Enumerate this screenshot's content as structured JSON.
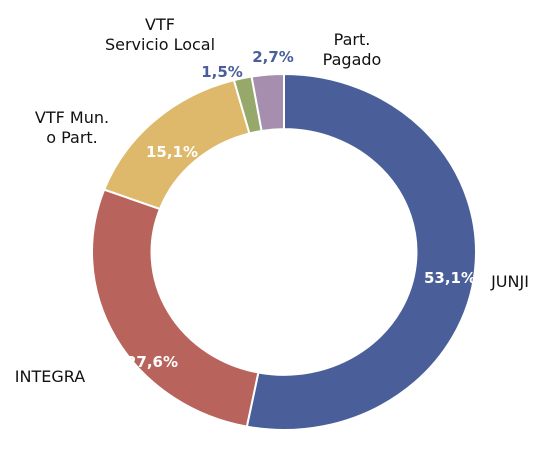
{
  "chart_data": {
    "type": "donut",
    "categories": [
      "JUNJI",
      "INTEGRA",
      "VTF Mun.\no Part.",
      "VTF\nServicio Local",
      "Part.\nPagado"
    ],
    "values": [
      53.1,
      27.6,
      15.1,
      1.5,
      2.7
    ],
    "value_labels": [
      "53,1%",
      "27,6%",
      "15,1%",
      "1,5%",
      "2,7%"
    ],
    "colors": [
      "#4a5f9a",
      "#b8635c",
      "#dfb96b",
      "#96a86a",
      "#a68fae"
    ]
  }
}
